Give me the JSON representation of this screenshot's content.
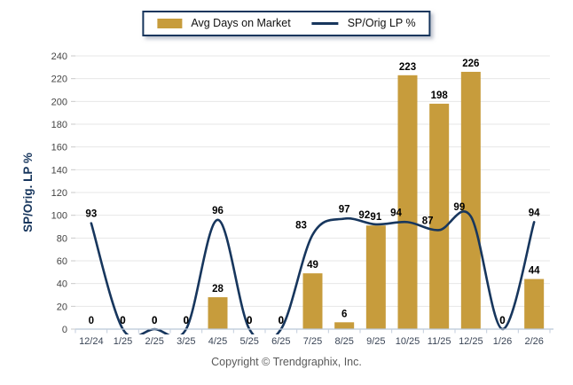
{
  "legend": {
    "bar_label": "Avg Days on Market",
    "line_label": "SP/Orig LP %"
  },
  "footer": {
    "copyright": "Copyright © Trendgraphix, Inc."
  },
  "colors": {
    "bar_fill": "#c79c3c",
    "line_stroke": "#17365d",
    "value_label": "#000000",
    "grid_line": "#e7e7e7",
    "axis_line": "#b9c6d8",
    "axis_tick": "#c3cedd",
    "y_tick_label": "#444444",
    "x_tick_label": "#3a4556",
    "y_axis_title": "#17365d"
  },
  "chart_data": {
    "type": "bar",
    "subtype": "bar+line combo",
    "title": "",
    "ylabel": "SP/Orig. LP %",
    "xlabel": "",
    "ylim": [
      0,
      240
    ],
    "yticks": [
      0,
      20,
      40,
      60,
      80,
      100,
      120,
      140,
      160,
      180,
      200,
      220,
      240
    ],
    "grid": true,
    "legend_position": "top-center",
    "data_labels": true,
    "categories": [
      "12/24",
      "1/25",
      "2/25",
      "3/25",
      "4/25",
      "5/25",
      "6/25",
      "7/25",
      "8/25",
      "9/25",
      "10/25",
      "11/25",
      "12/25",
      "1/26",
      "2/26"
    ],
    "series": [
      {
        "name": "Avg Days on Market",
        "type": "bar",
        "color": "#c79c3c",
        "values": [
          0,
          0,
          0,
          0,
          28,
          0,
          0,
          49,
          6,
          91,
          223,
          198,
          226,
          0,
          44
        ]
      },
      {
        "name": "SP/Orig LP %",
        "type": "line",
        "color": "#17365d",
        "smooth": true,
        "values": [
          93,
          0,
          0,
          0,
          96,
          0,
          0,
          83,
          97,
          92,
          94,
          87,
          99,
          0,
          94
        ]
      }
    ]
  }
}
